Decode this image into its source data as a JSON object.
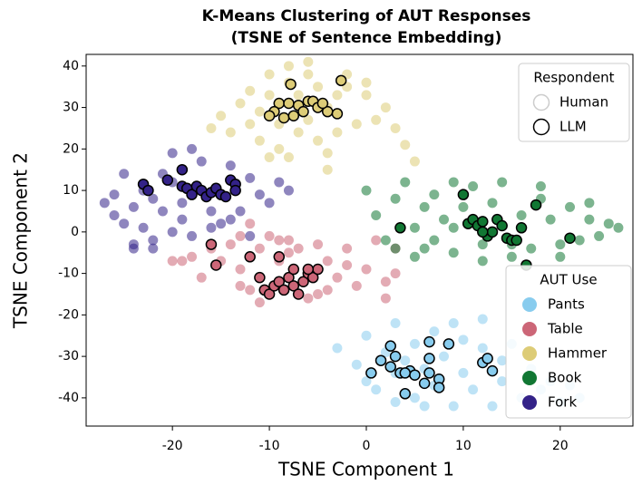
{
  "chart_data": {
    "type": "scatter",
    "title": [
      "K-Means Clustering of AUT Responses",
      "(TSNE of Sentence Embedding)"
    ],
    "x_label": "TSNE Component 1",
    "y_label": "TSNE Component 2",
    "xlim": [
      -28.9,
      27.5
    ],
    "ylim": [
      -46.8,
      42.8
    ],
    "xticks": [
      -20,
      -10,
      0,
      10,
      20
    ],
    "yticks": [
      -40,
      -30,
      -20,
      -10,
      0,
      10,
      20,
      30,
      40
    ],
    "respondent_legend": {
      "title": "Respondent",
      "labels": [
        "Human",
        "LLM"
      ]
    },
    "series_legend_title": "AUT Use",
    "series": [
      {
        "name": "Pants",
        "color": "#88CCEE",
        "x": [
          -3,
          -1,
          0,
          0,
          1,
          2,
          3,
          3,
          4,
          5,
          5,
          6,
          7,
          7,
          8,
          9,
          10,
          10,
          11,
          12,
          13,
          14,
          14,
          15,
          16,
          17,
          18,
          19,
          20,
          21,
          22,
          3,
          9,
          12,
          6
        ],
        "y": [
          -28,
          -32,
          -36,
          -25,
          -38,
          -29,
          -41,
          -22,
          -31,
          -27,
          -40,
          -33,
          -24,
          -37,
          -30,
          -42,
          -26,
          -34,
          -38,
          -28,
          -42,
          -31,
          -36,
          -27,
          -40,
          -33,
          -38,
          -36,
          -41,
          -37,
          -40,
          -34,
          -22,
          -21,
          -42
        ],
        "llm_x": [
          0.5,
          1.5,
          2.5,
          3,
          3.5,
          4,
          4.5,
          5,
          6,
          6.5,
          6.5,
          6.5,
          8.5,
          7.5,
          7.5,
          12,
          12.5,
          13,
          2.5,
          4
        ],
        "llm_y": [
          -34,
          -31,
          -32.5,
          -30,
          -34,
          -39,
          -33.5,
          -34.5,
          -36.5,
          -34,
          -30.5,
          -26.5,
          -27,
          -35.5,
          -37.5,
          -31.5,
          -30.5,
          -33.5,
          -27.5,
          -34
        ]
      },
      {
        "name": "Table",
        "color": "#CC6677",
        "x": [
          -20,
          -19,
          -18,
          -17,
          -16,
          -15,
          -14,
          -13,
          -13,
          -12,
          -11,
          -11,
          -10,
          -9,
          -9,
          -8,
          -7,
          -6,
          -5,
          -4,
          -4,
          -3,
          -2,
          -2,
          -1,
          0,
          1,
          2,
          3,
          3,
          -13,
          -8,
          -5,
          -12,
          2
        ],
        "y": [
          -7,
          -7,
          -6,
          -11,
          -4,
          -7,
          -3,
          -9,
          -1,
          -14,
          -4,
          -17,
          -1,
          -7,
          -2,
          -5,
          -4,
          -16,
          -3,
          -14,
          -7,
          -11,
          -4,
          -8,
          -13,
          -9,
          -2,
          -16,
          -10,
          -4,
          -13,
          -2,
          -15,
          2,
          -12
        ],
        "llm_x": [
          -16,
          -15.5,
          -12,
          -11,
          -10.5,
          -10,
          -9.5,
          -9,
          -8.5,
          -8,
          -7.5,
          -7.5,
          -7,
          -6.5,
          -6,
          -5.5,
          -5,
          -6,
          -9
        ],
        "llm_y": [
          -3,
          -8,
          -6,
          -11,
          -14,
          -15,
          -13,
          -12,
          -14,
          -11,
          -13,
          -9,
          -15,
          -12,
          -10,
          -11,
          -9,
          -9,
          -6
        ]
      },
      {
        "name": "Hammer",
        "color": "#DDCC77",
        "x": [
          -16,
          -15,
          -14,
          -13,
          -12,
          -12,
          -11,
          -11,
          -10,
          -10,
          -9,
          -9,
          -8,
          -8,
          -7,
          -7,
          -6,
          -6,
          -5,
          -5,
          -4,
          -4,
          -3,
          -3,
          -2,
          -1,
          0,
          1,
          2,
          3,
          4,
          5,
          -8,
          -6,
          -2,
          0,
          -4,
          -10
        ],
        "y": [
          25,
          28,
          24,
          31,
          26,
          34,
          29,
          22,
          33,
          38,
          26,
          20,
          36,
          18,
          33,
          24,
          38,
          27,
          22,
          35,
          19,
          30,
          33,
          24,
          35,
          26,
          33,
          27,
          30,
          25,
          21,
          17,
          40,
          41,
          38,
          36,
          15,
          18
        ],
        "llm_x": [
          -7.8,
          -2.6,
          -9,
          -8,
          -7,
          -6,
          -5.5,
          -5,
          -4,
          -3,
          -9.5,
          -10,
          -8.5,
          -7.5,
          -6.5,
          -4.5
        ],
        "llm_y": [
          35.6,
          36.5,
          31,
          31,
          30.5,
          31.5,
          31.5,
          30,
          29,
          28.5,
          29,
          28,
          27.5,
          28,
          29,
          31
        ]
      },
      {
        "name": "Book",
        "color": "#117733",
        "x": [
          0,
          1,
          2,
          3,
          3,
          4,
          5,
          5,
          6,
          7,
          7,
          8,
          9,
          9,
          10,
          11,
          12,
          13,
          14,
          15,
          16,
          17,
          18,
          19,
          20,
          21,
          22,
          23,
          24,
          25,
          26,
          6,
          12,
          18,
          15,
          9,
          20,
          23
        ],
        "y": [
          10,
          4,
          -2,
          8,
          -4,
          12,
          1,
          -6,
          6,
          -2,
          9,
          3,
          12,
          -5,
          6,
          11,
          -3,
          7,
          12,
          -6,
          4,
          -4,
          8,
          3,
          -6,
          6,
          -2,
          7,
          -1,
          2,
          1,
          -4,
          -7,
          11,
          -3,
          1,
          -3,
          3
        ],
        "llm_x": [
          3.5,
          10,
          10.5,
          11,
          11.5,
          12,
          12.5,
          13,
          13.5,
          14,
          14.5,
          15,
          15.5,
          16,
          17.5,
          16.5,
          21,
          12
        ],
        "llm_y": [
          1,
          9,
          2,
          3,
          1.5,
          2.5,
          -1,
          0,
          3,
          1.5,
          -1.5,
          -2,
          -2,
          1,
          6.5,
          -8,
          -1.5,
          0
        ]
      },
      {
        "name": "Fork",
        "color": "#332288",
        "x": [
          -27,
          -26,
          -26,
          -25,
          -25,
          -24,
          -24,
          -23,
          -23,
          -22,
          -22,
          -21,
          -21,
          -20,
          -20,
          -19,
          -19,
          -18,
          -17,
          -16,
          -16,
          -15,
          -14,
          -13,
          -12,
          -12,
          -11,
          -10,
          -9,
          -8,
          -20,
          -18,
          -24,
          -14,
          -22
        ],
        "y": [
          7,
          4,
          9,
          2,
          14,
          -4,
          6,
          1,
          10,
          -2,
          8,
          5,
          14,
          0,
          19,
          7,
          3,
          -1,
          17,
          5,
          1,
          2,
          16,
          5,
          13,
          -1,
          9,
          7,
          12,
          10,
          12,
          20,
          -3,
          3,
          -4
        ],
        "llm_x": [
          -23,
          -22.5,
          -20.5,
          -19,
          -19,
          -18.5,
          -18,
          -17.5,
          -17,
          -16.5,
          -16,
          -15.5,
          -15,
          -14,
          -13.5,
          -13.5,
          -14.5
        ],
        "llm_y": [
          11.5,
          10,
          12.5,
          15,
          11,
          10.5,
          9,
          11,
          10,
          8.5,
          9.5,
          10.5,
          9,
          12.5,
          11.5,
          10,
          8.5
        ]
      }
    ]
  }
}
